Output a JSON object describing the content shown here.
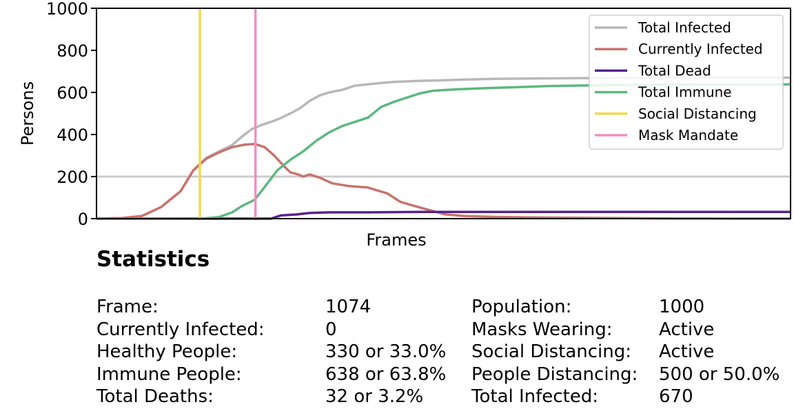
{
  "chart_data": {
    "type": "line",
    "xlabel": "Frames",
    "ylabel": "Persons",
    "ylim": [
      0,
      1000
    ],
    "xlim": [
      0,
      1074
    ],
    "yticks": [
      "0",
      "200",
      "400",
      "600",
      "800",
      "1000"
    ],
    "grid": false,
    "reference_line_y": 200,
    "legend_position": "upper-right",
    "series": [
      {
        "name": "Total Infected",
        "color": "#b8b8b8",
        "points": [
          [
            0,
            0
          ],
          [
            40,
            3
          ],
          [
            70,
            12
          ],
          [
            100,
            55
          ],
          [
            130,
            130
          ],
          [
            150,
            230
          ],
          [
            170,
            290
          ],
          [
            190,
            320
          ],
          [
            210,
            350
          ],
          [
            225,
            390
          ],
          [
            240,
            425
          ],
          [
            255,
            445
          ],
          [
            270,
            460
          ],
          [
            285,
            478
          ],
          [
            300,
            500
          ],
          [
            315,
            525
          ],
          [
            330,
            560
          ],
          [
            345,
            585
          ],
          [
            360,
            600
          ],
          [
            380,
            612
          ],
          [
            400,
            632
          ],
          [
            430,
            642
          ],
          [
            460,
            650
          ],
          [
            500,
            655
          ],
          [
            540,
            658
          ],
          [
            580,
            662
          ],
          [
            620,
            665
          ],
          [
            700,
            667
          ],
          [
            800,
            669
          ],
          [
            900,
            670
          ],
          [
            1074,
            670
          ]
        ]
      },
      {
        "name": "Currently Infected",
        "color": "#c8736c",
        "points": [
          [
            0,
            0
          ],
          [
            40,
            3
          ],
          [
            70,
            12
          ],
          [
            100,
            55
          ],
          [
            130,
            130
          ],
          [
            150,
            230
          ],
          [
            170,
            285
          ],
          [
            190,
            315
          ],
          [
            210,
            340
          ],
          [
            230,
            352
          ],
          [
            245,
            355
          ],
          [
            260,
            340
          ],
          [
            275,
            300
          ],
          [
            290,
            250
          ],
          [
            300,
            220
          ],
          [
            310,
            212
          ],
          [
            320,
            200
          ],
          [
            330,
            210
          ],
          [
            345,
            195
          ],
          [
            365,
            168
          ],
          [
            390,
            155
          ],
          [
            420,
            148
          ],
          [
            450,
            120
          ],
          [
            470,
            80
          ],
          [
            490,
            62
          ],
          [
            510,
            45
          ],
          [
            540,
            20
          ],
          [
            570,
            12
          ],
          [
            620,
            8
          ],
          [
            700,
            5
          ],
          [
            800,
            3
          ],
          [
            900,
            1
          ],
          [
            1000,
            0
          ],
          [
            1074,
            0
          ]
        ]
      },
      {
        "name": "Total Dead",
        "color": "#54248f",
        "points": [
          [
            0,
            0
          ],
          [
            270,
            0
          ],
          [
            285,
            15
          ],
          [
            310,
            20
          ],
          [
            330,
            27
          ],
          [
            360,
            30
          ],
          [
            420,
            30
          ],
          [
            500,
            32
          ],
          [
            600,
            32
          ],
          [
            700,
            32
          ],
          [
            1074,
            32
          ]
        ]
      },
      {
        "name": "Total Immune",
        "color": "#5db87e",
        "points": [
          [
            0,
            0
          ],
          [
            170,
            2
          ],
          [
            190,
            8
          ],
          [
            210,
            30
          ],
          [
            225,
            60
          ],
          [
            245,
            90
          ],
          [
            260,
            150
          ],
          [
            280,
            230
          ],
          [
            300,
            280
          ],
          [
            320,
            320
          ],
          [
            340,
            370
          ],
          [
            360,
            410
          ],
          [
            380,
            440
          ],
          [
            400,
            460
          ],
          [
            420,
            480
          ],
          [
            440,
            530
          ],
          [
            460,
            555
          ],
          [
            480,
            575
          ],
          [
            500,
            595
          ],
          [
            520,
            608
          ],
          [
            560,
            615
          ],
          [
            600,
            620
          ],
          [
            650,
            625
          ],
          [
            700,
            630
          ],
          [
            800,
            635
          ],
          [
            900,
            637
          ],
          [
            1074,
            638
          ]
        ]
      },
      {
        "name": "Social Distancing",
        "color": "#f2d94a",
        "vertical_x": 160
      },
      {
        "name": "Mask Mandate",
        "color": "#ee8fc5",
        "vertical_x": 246
      }
    ]
  },
  "statistics": {
    "title": "Statistics",
    "rows": [
      {
        "label": "Frame:",
        "value": "1074",
        "label2": "Population:",
        "value2": "1000"
      },
      {
        "label": "Currently Infected:",
        "value": "0",
        "label2": "Masks Wearing:",
        "value2": "Active"
      },
      {
        "label": "Healthy People:",
        "value": "330 or 33.0%",
        "label2": "Social Distancing:",
        "value2": "Active"
      },
      {
        "label": "Immune People:",
        "value": "638 or 63.8%",
        "label2": "People Distancing:",
        "value2": "500 or 50.0%"
      },
      {
        "label": "Total Deaths:",
        "value": "32 or 3.2%",
        "label2": "Total Infected:",
        "value2": "670"
      }
    ]
  }
}
